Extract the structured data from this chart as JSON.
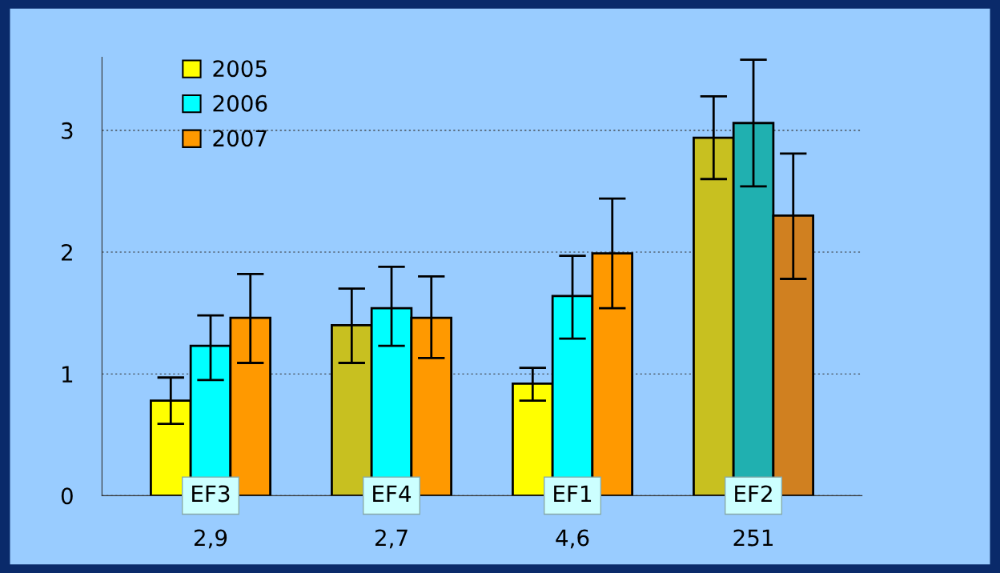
{
  "chart_data": {
    "type": "bar",
    "categories": [
      "2,9",
      "2,7",
      "4,6",
      "251"
    ],
    "series": [
      {
        "name": "2005",
        "color": "#ffff00",
        "colors": [
          "#ffff00",
          "#c8c020",
          "#ffff00",
          "#c8c020"
        ],
        "values": [
          0.78,
          1.4,
          0.92,
          2.94
        ],
        "errors": [
          [
            0.59,
            0.97
          ],
          [
            1.09,
            1.7
          ],
          [
            0.78,
            1.05
          ],
          [
            2.6,
            3.28
          ]
        ]
      },
      {
        "name": "2006",
        "color": "#00ffff",
        "colors": [
          "#00ffff",
          "#00ffff",
          "#00ffff",
          "#20b0b0"
        ],
        "values": [
          1.23,
          1.54,
          1.64,
          3.06
        ],
        "errors": [
          [
            0.95,
            1.48
          ],
          [
            1.23,
            1.88
          ],
          [
            1.29,
            1.97
          ],
          [
            2.54,
            3.58
          ]
        ]
      },
      {
        "name": "2007",
        "color": "#ff9900",
        "colors": [
          "#ff9900",
          "#ff9900",
          "#ff9900",
          "#d08020"
        ],
        "values": [
          1.46,
          1.46,
          1.99,
          2.3
        ],
        "errors": [
          [
            1.09,
            1.82
          ],
          [
            1.13,
            1.8
          ],
          [
            1.54,
            2.44
          ],
          [
            1.78,
            2.81
          ]
        ]
      }
    ],
    "annotations": [
      {
        "text": "EF3",
        "x": "2,9",
        "y": 0
      },
      {
        "text": "EF4",
        "x": "2,7",
        "y": 0
      },
      {
        "text": "EF1",
        "x": "4,6",
        "y": 0
      },
      {
        "text": "EF2",
        "x": "251",
        "y": 0
      }
    ],
    "ylim": [
      0,
      3.6
    ],
    "yticks": [
      0,
      1,
      2,
      3
    ],
    "grid": "y",
    "legend": "top left"
  }
}
